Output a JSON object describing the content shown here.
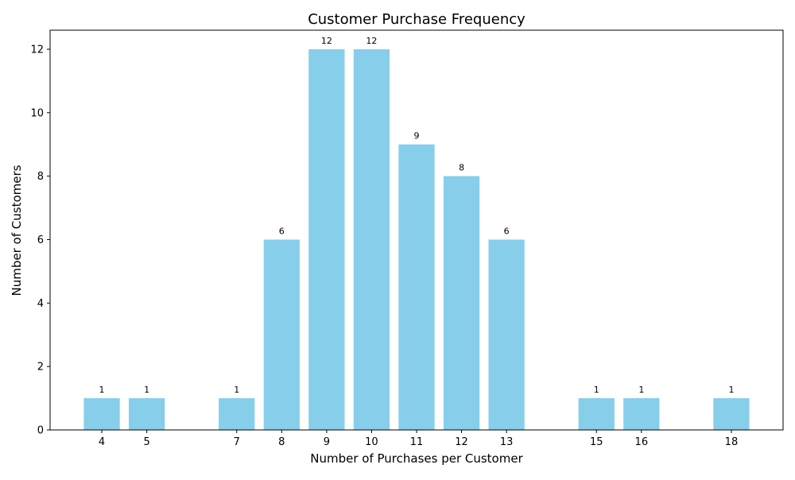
{
  "chart_data": {
    "type": "bar",
    "title": "Customer Purchase Frequency",
    "xlabel": "Number of Purchases per Customer",
    "ylabel": "Number of Customers",
    "x": [
      4,
      5,
      7,
      8,
      9,
      10,
      11,
      12,
      13,
      15,
      16,
      18
    ],
    "values": [
      1,
      1,
      1,
      6,
      12,
      12,
      9,
      8,
      6,
      1,
      1,
      1
    ],
    "xticks": [
      4,
      5,
      7,
      8,
      9,
      10,
      11,
      12,
      13,
      15,
      16,
      18
    ],
    "yticks": [
      0,
      2,
      4,
      6,
      8,
      10,
      12
    ],
    "xlim": [
      2.85,
      19.15
    ],
    "ylim": [
      0,
      12.6
    ],
    "bar_width": 0.8,
    "bar_color": "#87ceeb",
    "grid": false,
    "legend": "none",
    "data_labels": true
  }
}
